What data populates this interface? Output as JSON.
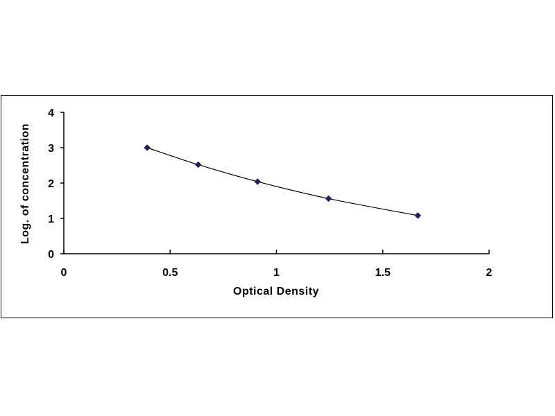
{
  "chart_data": {
    "type": "scatter",
    "title": "",
    "xlabel": "Optical Density",
    "ylabel": "Log. of concentration",
    "xlim": [
      0,
      2
    ],
    "ylim": [
      0,
      4
    ],
    "x_ticks": [
      "0",
      "0.5",
      "1",
      "1.5",
      "2"
    ],
    "y_ticks": [
      "0",
      "1",
      "2",
      "3",
      "4"
    ],
    "grid": false,
    "legend": "none",
    "trendline": true,
    "marker": "diamond",
    "marker_color": "#1f1f5c",
    "line_color": "#000000",
    "series": [
      {
        "x": [
          0.392,
          0.632,
          0.911,
          1.245,
          1.665
        ],
        "y": [
          3.0,
          2.52,
          2.04,
          1.56,
          1.08
        ]
      }
    ]
  }
}
